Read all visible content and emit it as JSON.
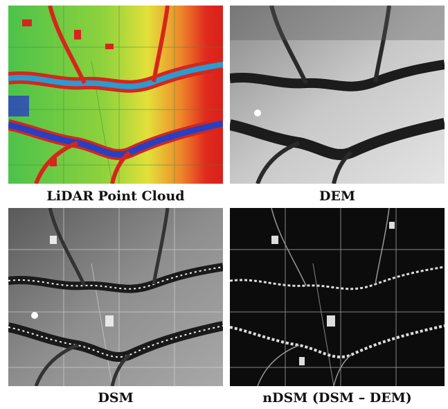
{
  "panels": [
    {
      "caption": "LiDAR Point Cloud"
    },
    {
      "caption": "DEM"
    },
    {
      "caption": "DSM"
    },
    {
      "caption": "nDSM (DSM – DEM)"
    }
  ]
}
